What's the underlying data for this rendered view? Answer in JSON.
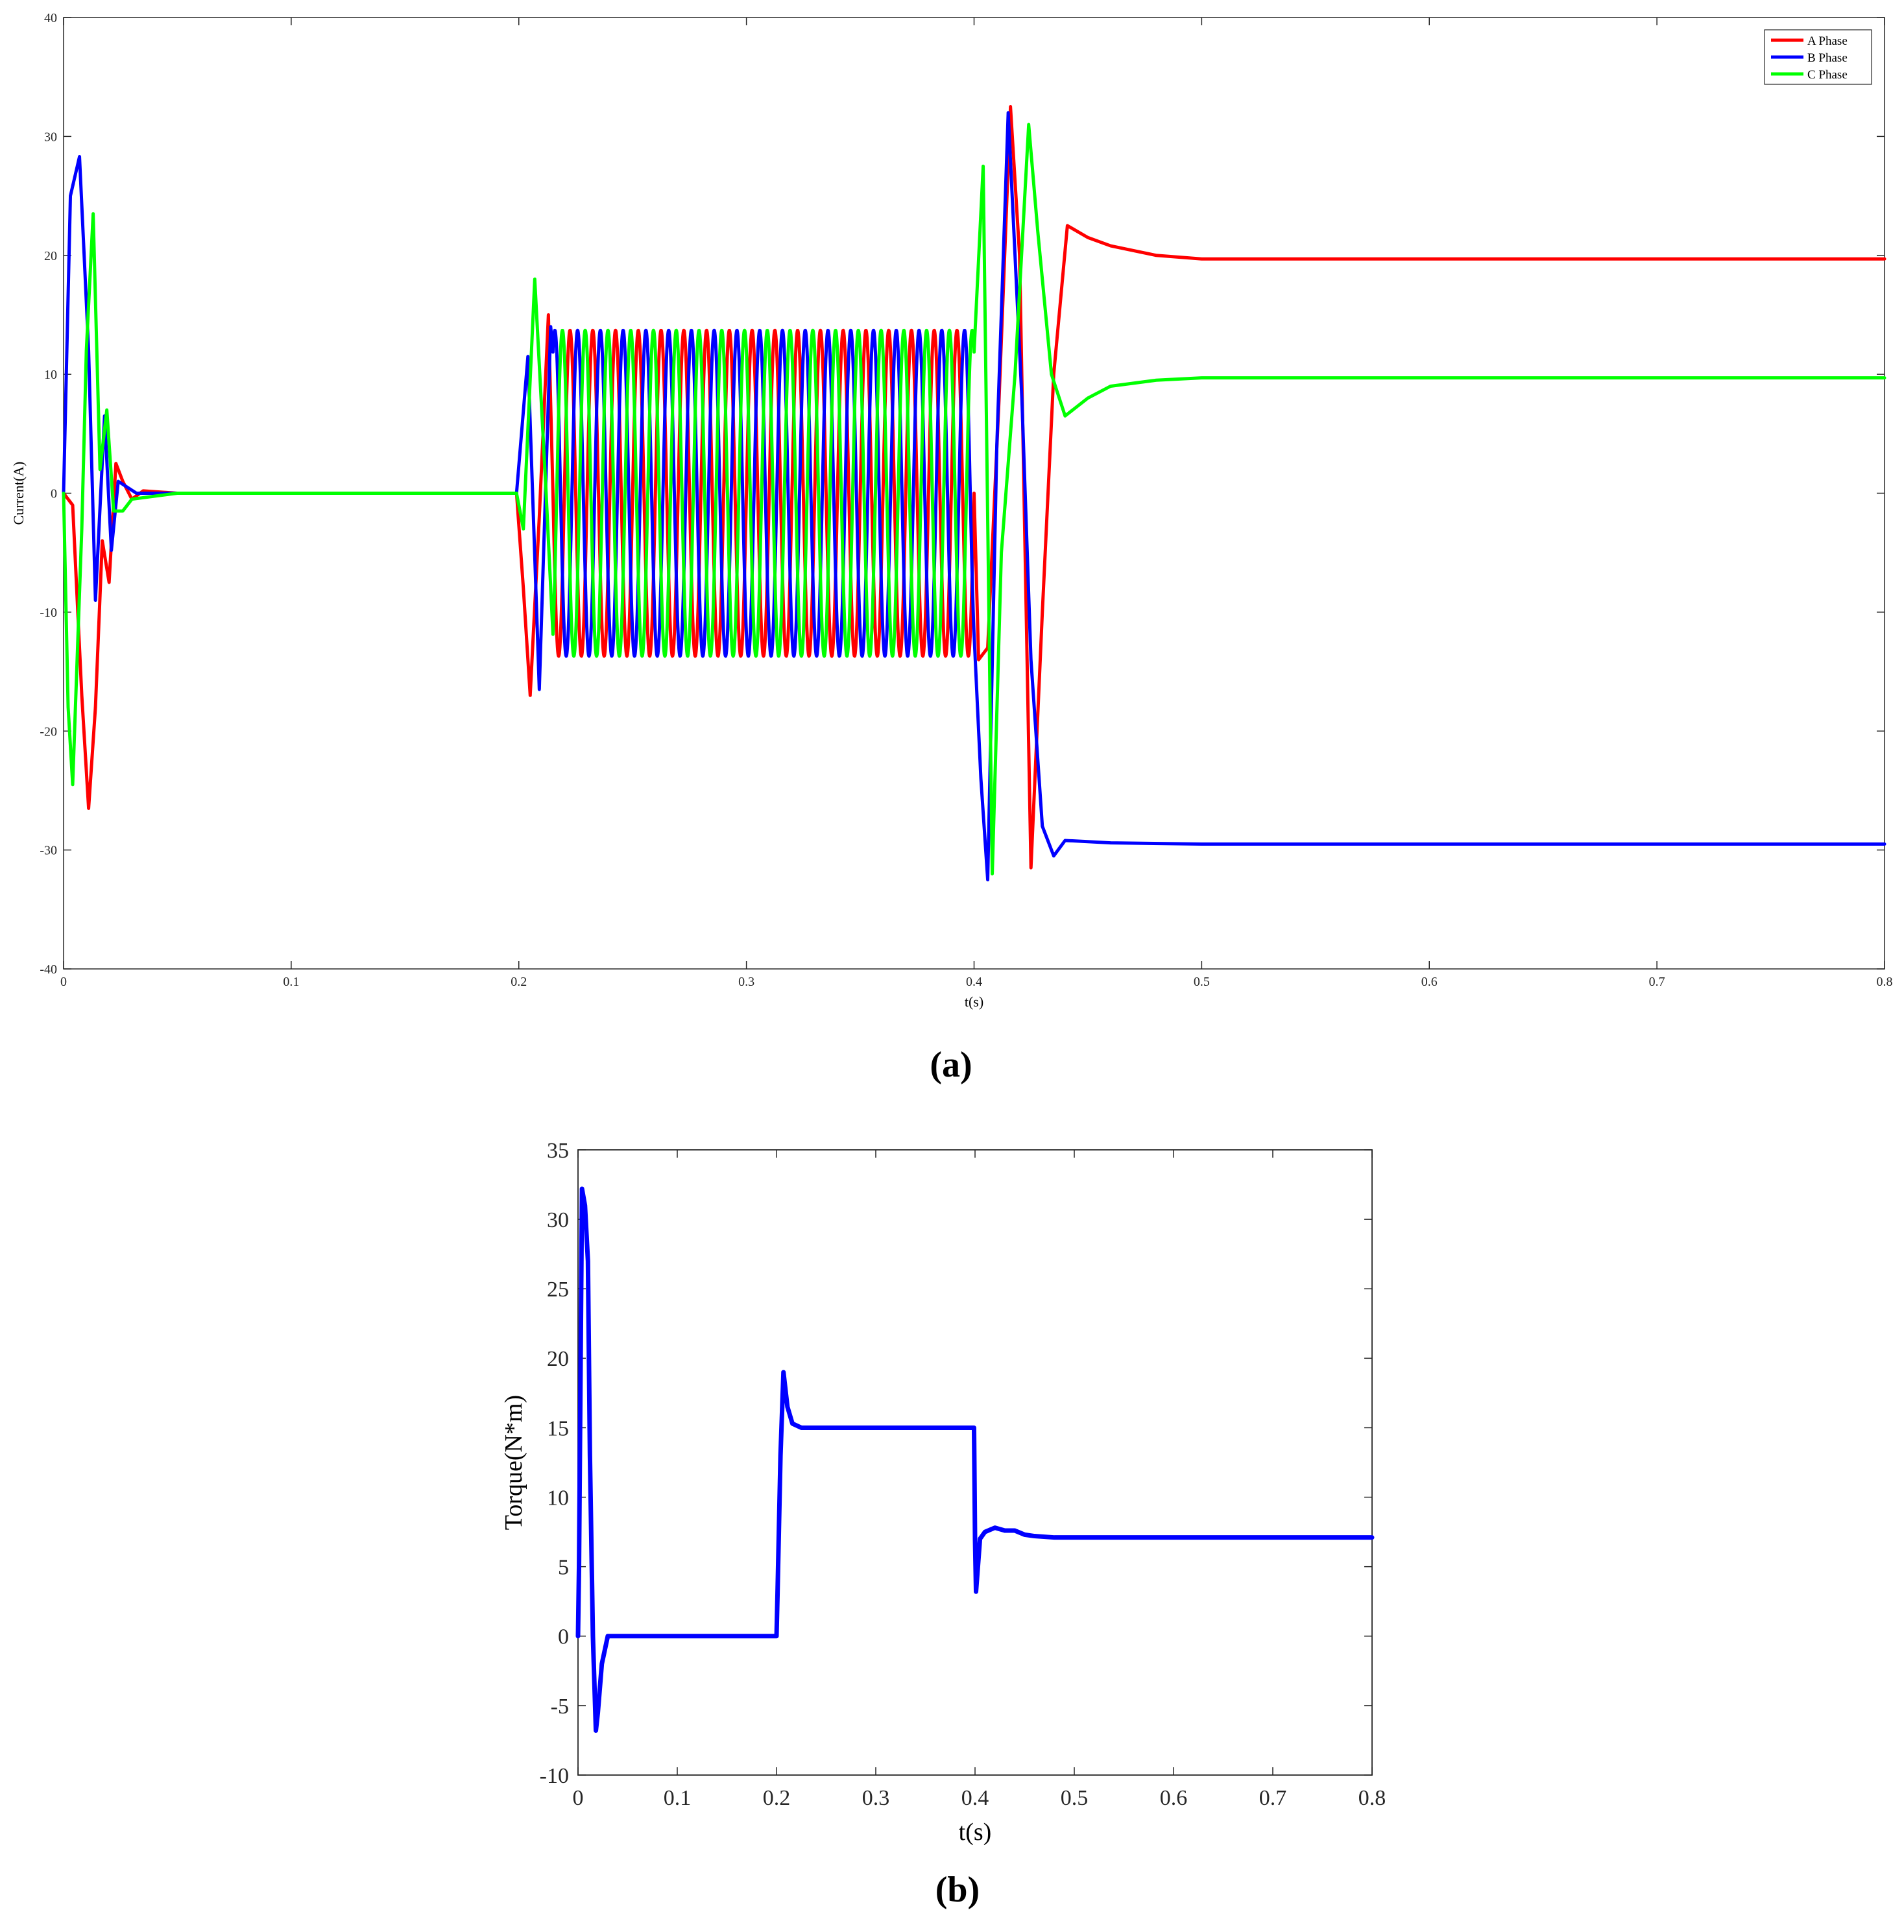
{
  "chart_data": [
    {
      "label": "(a)",
      "type": "line",
      "title": "",
      "xlabel": "t(s)",
      "ylabel": "Current(A)",
      "xlim": [
        0,
        0.8
      ],
      "ylim": [
        -40,
        40
      ],
      "xticks": [
        0,
        0.1,
        0.2,
        0.3,
        0.4,
        0.5,
        0.6,
        0.7,
        0.8
      ],
      "yticks": [
        -40,
        -30,
        -20,
        -10,
        0,
        10,
        20,
        30,
        40
      ],
      "xtick_labels": [
        "0",
        "0.1",
        "0.2",
        "0.3",
        "0.4",
        "0.5",
        "0.6",
        "0.7",
        "0.8"
      ],
      "ytick_labels": [
        "-40",
        "-30",
        "-20",
        "-10",
        "0",
        "10",
        "20",
        "30",
        "40"
      ],
      "grid": false,
      "legend_position": "top-right",
      "series": [
        {
          "name": "A Phase",
          "color": "#ff0000",
          "x": [
            0,
            0.004,
            0.008,
            0.011,
            0.014,
            0.017,
            0.02,
            0.023,
            0.026,
            0.03,
            0.035,
            0.05,
            0.1,
            0.15,
            0.199,
            0.202,
            0.205,
            0.209,
            0.213,
            0.4,
            0.402,
            0.406,
            0.411,
            0.416,
            0.42,
            0.425,
            0.43,
            0.435,
            0.441,
            0.45,
            0.46,
            0.48,
            0.5,
            0.55,
            0.8
          ],
          "y": [
            0,
            -1,
            -17,
            -26.5,
            -18,
            -4,
            -7.5,
            2.5,
            1,
            -0.5,
            0.2,
            0,
            0,
            0,
            0,
            -8,
            -17,
            -2,
            15,
            -13,
            -14,
            -13,
            8,
            32.5,
            20,
            -31.5,
            -10,
            10,
            22.5,
            21.5,
            20.8,
            20,
            19.7,
            19.7,
            19.7
          ]
        },
        {
          "name": "B Phase",
          "color": "#0000ff",
          "x": [
            0,
            0.003,
            0.007,
            0.011,
            0.014,
            0.018,
            0.021,
            0.024,
            0.028,
            0.032,
            0.05,
            0.1,
            0.15,
            0.199,
            0.204,
            0.209,
            0.214,
            0.4,
            0.403,
            0.406,
            0.41,
            0.415,
            0.421,
            0.425,
            0.43,
            0.435,
            0.44,
            0.46,
            0.5,
            0.8
          ],
          "y": [
            0,
            25,
            28.3,
            12,
            -9,
            6.5,
            -4.8,
            1,
            0.5,
            0,
            0,
            0,
            0,
            0,
            11.5,
            -16.5,
            14,
            13.5,
            -24,
            -32.5,
            4,
            32,
            8,
            -14,
            -28,
            -30.5,
            -29.2,
            -29.4,
            -29.5,
            -29.5
          ]
        },
        {
          "name": "C Phase",
          "color": "#00ff00",
          "x": [
            0,
            0.002,
            0.004,
            0.008,
            0.01,
            0.013,
            0.016,
            0.019,
            0.022,
            0.026,
            0.03,
            0.05,
            0.1,
            0.15,
            0.199,
            0.202,
            0.207,
            0.212,
            0.216,
            0.4,
            0.404,
            0.408,
            0.412,
            0.418,
            0.424,
            0.428,
            0.434,
            0.44,
            0.45,
            0.46,
            0.48,
            0.5,
            0.8
          ],
          "y": [
            0,
            -18,
            -24.5,
            -3,
            12,
            23.5,
            2,
            7,
            -1.5,
            -1.5,
            -0.5,
            0,
            0,
            0,
            0,
            -3,
            18,
            0,
            -14.5,
            13,
            27.5,
            -32,
            -5,
            10,
            31,
            22,
            10,
            6.5,
            8,
            9,
            9.5,
            9.7,
            9.7
          ]
        }
      ],
      "oscillation": {
        "t_start": 0.215,
        "t_end": 0.4,
        "amplitude": 13.7,
        "frequency_hz": 100,
        "phases": {
          "A Phase": 0,
          "B Phase": -120,
          "C Phase": 120
        }
      }
    },
    {
      "label": "(b)",
      "type": "line",
      "title": "",
      "xlabel": "t(s)",
      "ylabel": "Torque(N*m)",
      "xlim": [
        0,
        0.8
      ],
      "ylim": [
        -10,
        35
      ],
      "xticks": [
        0,
        0.1,
        0.2,
        0.3,
        0.4,
        0.5,
        0.6,
        0.7,
        0.8
      ],
      "yticks": [
        -10,
        -5,
        0,
        5,
        10,
        15,
        20,
        25,
        30,
        35
      ],
      "xtick_labels": [
        "0",
        "0.1",
        "0.2",
        "0.3",
        "0.4",
        "0.5",
        "0.6",
        "0.7",
        "0.8"
      ],
      "ytick_labels": [
        "-10",
        "-5",
        "0",
        "5",
        "10",
        "15",
        "20",
        "25",
        "30",
        "35"
      ],
      "grid": false,
      "legend_position": "none",
      "series": [
        {
          "name": "",
          "color": "#0000ff",
          "x": [
            0,
            0.001,
            0.004,
            0.007,
            0.01,
            0.012,
            0.015,
            0.018,
            0.02,
            0.024,
            0.03,
            0.05,
            0.1,
            0.15,
            0.2,
            0.201,
            0.204,
            0.207,
            0.211,
            0.216,
            0.225,
            0.24,
            0.3,
            0.399,
            0.4,
            0.401,
            0.405,
            0.41,
            0.42,
            0.43,
            0.44,
            0.45,
            0.46,
            0.48,
            0.5,
            0.8
          ],
          "y": [
            0,
            5,
            32.2,
            31,
            27,
            13,
            0,
            -6.8,
            -5.5,
            -2,
            0,
            0,
            0,
            0,
            0,
            3,
            13,
            19,
            16.5,
            15.3,
            15,
            15,
            15,
            15,
            7,
            3.2,
            7,
            7.5,
            7.8,
            7.6,
            7.6,
            7.3,
            7.2,
            7.1,
            7.1,
            7.1
          ]
        }
      ]
    }
  ],
  "captions": {
    "a": "(a)",
    "b": "(b)"
  }
}
